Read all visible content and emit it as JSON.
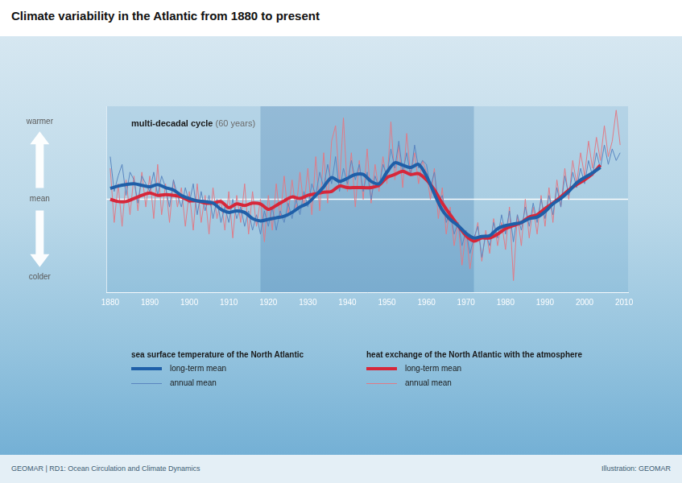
{
  "chart_data": {
    "type": "line",
    "title": "Climate variability in the Atlantic from 1880 to present",
    "annotation": "multi-decadal cycle",
    "annotation_note": "(60 years)",
    "footer_left": "GEOMAR | RD1: Ocean Circulation and Climate Dynamics",
    "footer_right": "Illustration: GEOMAR",
    "xlim": [
      1879,
      2011
    ],
    "xticks": [
      1880,
      1890,
      1900,
      1910,
      1920,
      1930,
      1940,
      1950,
      1960,
      1970,
      1980,
      1990,
      2000,
      2010
    ],
    "ylim": [
      -1.2,
      1.2
    ],
    "yticks": [
      {
        "value": -1,
        "label": "colder"
      },
      {
        "value": 0,
        "label": "mean"
      },
      {
        "value": 1,
        "label": "warmer"
      }
    ],
    "grid": false,
    "reference_line": 0,
    "shaded_period": [
      1918,
      1972
    ],
    "legend": "bottom",
    "series": [
      {
        "name": "long-term mean",
        "group": "sea surface temperature of the North Atlantic",
        "color": "#1f5fa8",
        "line_style": "bold",
        "x": [
          1880,
          1882,
          1884,
          1886,
          1888,
          1890,
          1892,
          1894,
          1896,
          1898,
          1900,
          1902,
          1904,
          1906,
          1908,
          1910,
          1912,
          1914,
          1916,
          1918,
          1920,
          1922,
          1924,
          1926,
          1928,
          1930,
          1932,
          1934,
          1936,
          1938,
          1940,
          1942,
          1944,
          1946,
          1948,
          1950,
          1952,
          1954,
          1956,
          1958,
          1960,
          1962,
          1964,
          1966,
          1968,
          1970,
          1972,
          1974,
          1976,
          1978,
          1980,
          1982,
          1984,
          1986,
          1988,
          1990,
          1992,
          1994,
          1996,
          1998,
          2000,
          2002,
          2004
        ],
        "values": [
          0.14,
          0.17,
          0.19,
          0.2,
          0.18,
          0.16,
          0.19,
          0.15,
          0.12,
          0.05,
          0.01,
          -0.02,
          -0.03,
          -0.05,
          -0.13,
          -0.17,
          -0.15,
          -0.17,
          -0.25,
          -0.28,
          -0.26,
          -0.24,
          -0.22,
          -0.17,
          -0.1,
          -0.05,
          0.05,
          0.16,
          0.28,
          0.23,
          0.27,
          0.32,
          0.32,
          0.23,
          0.2,
          0.35,
          0.47,
          0.44,
          0.41,
          0.45,
          0.3,
          0.07,
          -0.14,
          -0.26,
          -0.34,
          -0.44,
          -0.5,
          -0.48,
          -0.47,
          -0.38,
          -0.34,
          -0.32,
          -0.3,
          -0.25,
          -0.23,
          -0.16,
          -0.06,
          0.01,
          0.1,
          0.21,
          0.28,
          0.34,
          0.41
        ]
      },
      {
        "name": "annual mean",
        "group": "sea surface temperature of the North Atlantic",
        "color": "#5a86c0",
        "line_style": "thin",
        "x": [
          1880,
          1881,
          1882,
          1883,
          1884,
          1885,
          1886,
          1887,
          1888,
          1889,
          1890,
          1891,
          1892,
          1893,
          1894,
          1895,
          1896,
          1897,
          1898,
          1899,
          1900,
          1901,
          1902,
          1903,
          1904,
          1905,
          1906,
          1907,
          1908,
          1909,
          1910,
          1911,
          1912,
          1913,
          1914,
          1915,
          1916,
          1917,
          1918,
          1919,
          1920,
          1921,
          1922,
          1923,
          1924,
          1925,
          1926,
          1927,
          1928,
          1929,
          1930,
          1931,
          1932,
          1933,
          1934,
          1935,
          1936,
          1937,
          1938,
          1939,
          1940,
          1941,
          1942,
          1943,
          1944,
          1945,
          1946,
          1947,
          1948,
          1949,
          1950,
          1951,
          1952,
          1953,
          1954,
          1955,
          1956,
          1957,
          1958,
          1959,
          1960,
          1961,
          1962,
          1963,
          1964,
          1965,
          1966,
          1967,
          1968,
          1969,
          1970,
          1971,
          1972,
          1973,
          1974,
          1975,
          1976,
          1977,
          1978,
          1979,
          1980,
          1981,
          1982,
          1983,
          1984,
          1985,
          1986,
          1987,
          1988,
          1989,
          1990,
          1991,
          1992,
          1993,
          1994,
          1995,
          1996,
          1997,
          1998,
          1999,
          2000,
          2001,
          2002,
          2003,
          2004,
          2005,
          2006,
          2007,
          2008,
          2009
        ],
        "values": [
          0.55,
          0.1,
          0.3,
          0.45,
          0.05,
          0.35,
          0.25,
          -0.05,
          0.3,
          0.2,
          0.1,
          0.35,
          0.05,
          0.3,
          0.15,
          -0.1,
          0.25,
          0.05,
          -0.1,
          0.15,
          -0.05,
          0.2,
          -0.2,
          0.1,
          -0.15,
          0.05,
          -0.25,
          0.0,
          -0.3,
          -0.1,
          -0.3,
          0.0,
          -0.25,
          -0.1,
          -0.35,
          -0.15,
          -0.4,
          -0.2,
          -0.45,
          -0.15,
          -0.35,
          -0.1,
          -0.4,
          -0.15,
          -0.3,
          -0.05,
          -0.25,
          0.0,
          -0.2,
          0.1,
          -0.1,
          0.2,
          0.05,
          0.35,
          0.15,
          0.45,
          0.2,
          0.55,
          0.1,
          0.4,
          0.2,
          0.5,
          0.25,
          0.45,
          0.1,
          0.35,
          0.0,
          0.3,
          0.15,
          0.45,
          0.3,
          0.65,
          0.4,
          0.75,
          0.35,
          0.6,
          0.3,
          0.7,
          0.4,
          0.5,
          0.45,
          0.15,
          0.35,
          -0.05,
          0.05,
          -0.3,
          -0.15,
          -0.45,
          -0.3,
          -0.6,
          -0.4,
          -0.7,
          -0.5,
          -0.35,
          -0.75,
          -0.45,
          -0.6,
          -0.3,
          -0.5,
          -0.2,
          -0.45,
          -0.15,
          -0.55,
          -0.2,
          -0.4,
          -0.1,
          -0.35,
          -0.05,
          -0.3,
          0.0,
          -0.25,
          0.05,
          -0.2,
          0.15,
          -0.1,
          0.3,
          0.05,
          0.35,
          0.15,
          0.4,
          0.2,
          0.5,
          0.3,
          0.6,
          0.4,
          0.7,
          0.45,
          0.65,
          0.5,
          0.6
        ]
      },
      {
        "name": "long-term mean",
        "group": "heat exchange of the North Atlantic with the atmosphere",
        "color": "#d6273a",
        "line_style": "bold",
        "x": [
          1880,
          1882,
          1884,
          1886,
          1888,
          1890,
          1892,
          1894,
          1896,
          1898,
          1900,
          1902,
          1904,
          1906,
          1908,
          1910,
          1912,
          1914,
          1916,
          1918,
          1920,
          1922,
          1924,
          1926,
          1928,
          1930,
          1932,
          1934,
          1936,
          1938,
          1940,
          1942,
          1944,
          1946,
          1948,
          1950,
          1952,
          1954,
          1956,
          1958,
          1960,
          1962,
          1964,
          1966,
          1968,
          1970,
          1972,
          1974,
          1976,
          1978,
          1980,
          1982,
          1984,
          1986,
          1988,
          1990,
          1992,
          1994,
          1996,
          1998,
          2000,
          2002,
          2004
        ],
        "values": [
          0,
          -0.03,
          -0.03,
          0.01,
          0.05,
          0.08,
          0.05,
          0.06,
          0.05,
          0.03,
          -0.02,
          -0.02,
          -0.05,
          -0.05,
          -0.03,
          -0.11,
          -0.06,
          -0.08,
          -0.05,
          -0.06,
          -0.13,
          -0.08,
          -0.02,
          0.03,
          0.01,
          0.05,
          0.07,
          0.09,
          0.1,
          0.17,
          0.15,
          0.15,
          0.15,
          0.15,
          0.18,
          0.28,
          0.32,
          0.36,
          0.32,
          0.33,
          0.25,
          0.12,
          -0.05,
          -0.2,
          -0.34,
          -0.47,
          -0.54,
          -0.5,
          -0.5,
          -0.45,
          -0.38,
          -0.34,
          -0.3,
          -0.23,
          -0.2,
          -0.12,
          -0.05,
          0.03,
          0.12,
          0.19,
          0.25,
          0.33,
          0.44
        ]
      },
      {
        "name": "annual mean",
        "group": "heat exchange of the North Atlantic with the atmosphere",
        "color": "#e07a86",
        "line_style": "thin",
        "x": [
          1880,
          1881,
          1882,
          1883,
          1884,
          1885,
          1886,
          1887,
          1888,
          1889,
          1890,
          1891,
          1892,
          1893,
          1894,
          1895,
          1896,
          1897,
          1898,
          1899,
          1900,
          1901,
          1902,
          1903,
          1904,
          1905,
          1906,
          1907,
          1908,
          1909,
          1910,
          1911,
          1912,
          1913,
          1914,
          1915,
          1916,
          1917,
          1918,
          1919,
          1920,
          1921,
          1922,
          1923,
          1924,
          1925,
          1926,
          1927,
          1928,
          1929,
          1930,
          1931,
          1932,
          1933,
          1934,
          1935,
          1936,
          1937,
          1938,
          1939,
          1940,
          1941,
          1942,
          1943,
          1944,
          1945,
          1946,
          1947,
          1948,
          1949,
          1950,
          1951,
          1952,
          1953,
          1954,
          1955,
          1956,
          1957,
          1958,
          1959,
          1960,
          1961,
          1962,
          1963,
          1964,
          1965,
          1966,
          1967,
          1968,
          1969,
          1970,
          1971,
          1972,
          1973,
          1974,
          1975,
          1976,
          1977,
          1978,
          1979,
          1980,
          1981,
          1982,
          1983,
          1984,
          1985,
          1986,
          1987,
          1988,
          1989,
          1990,
          1991,
          1992,
          1993,
          1994,
          1995,
          1996,
          1997,
          1998,
          1999,
          2000,
          2001,
          2002,
          2003,
          2004,
          2005,
          2006,
          2007,
          2008,
          2009
        ],
        "values": [
          0.4,
          -0.3,
          0.2,
          -0.35,
          0.25,
          -0.2,
          0.3,
          -0.15,
          0.35,
          -0.1,
          0.3,
          -0.25,
          0.45,
          -0.2,
          0.2,
          -0.3,
          0.25,
          -0.1,
          0.15,
          -0.35,
          0.1,
          -0.4,
          0.2,
          -0.3,
          0.05,
          -0.45,
          0.15,
          -0.25,
          0.0,
          -0.4,
          0.1,
          -0.5,
          0.05,
          -0.3,
          0.2,
          -0.45,
          0.1,
          -0.35,
          0.0,
          -0.55,
          0.05,
          -0.4,
          0.2,
          -0.25,
          0.3,
          -0.2,
          0.25,
          -0.15,
          0.35,
          -0.1,
          0.4,
          -0.2,
          0.55,
          -0.15,
          0.6,
          -0.05,
          0.75,
          0.95,
          0.2,
          1.05,
          0.1,
          0.6,
          -0.1,
          0.5,
          0.0,
          0.65,
          -0.05,
          0.45,
          0.1,
          0.55,
          0.2,
          1.0,
          0.25,
          0.7,
          0.15,
          0.85,
          0.3,
          0.6,
          0.2,
          0.5,
          0.35,
          0.0,
          0.4,
          -0.25,
          0.15,
          -0.45,
          -0.1,
          -0.6,
          -0.3,
          -0.85,
          -0.4,
          -0.9,
          -0.55,
          -0.3,
          -0.8,
          -0.4,
          -0.7,
          -0.25,
          -0.6,
          -0.3,
          -0.65,
          -0.1,
          -1.05,
          -0.2,
          -0.6,
          0.0,
          -0.5,
          -0.1,
          -0.45,
          0.05,
          -0.35,
          0.15,
          -0.3,
          0.25,
          -0.1,
          0.4,
          0.0,
          0.5,
          0.2,
          0.6,
          0.3,
          0.75,
          0.4,
          0.8,
          0.5,
          0.95,
          0.55,
          0.75,
          1.15,
          0.7
        ]
      }
    ]
  }
}
